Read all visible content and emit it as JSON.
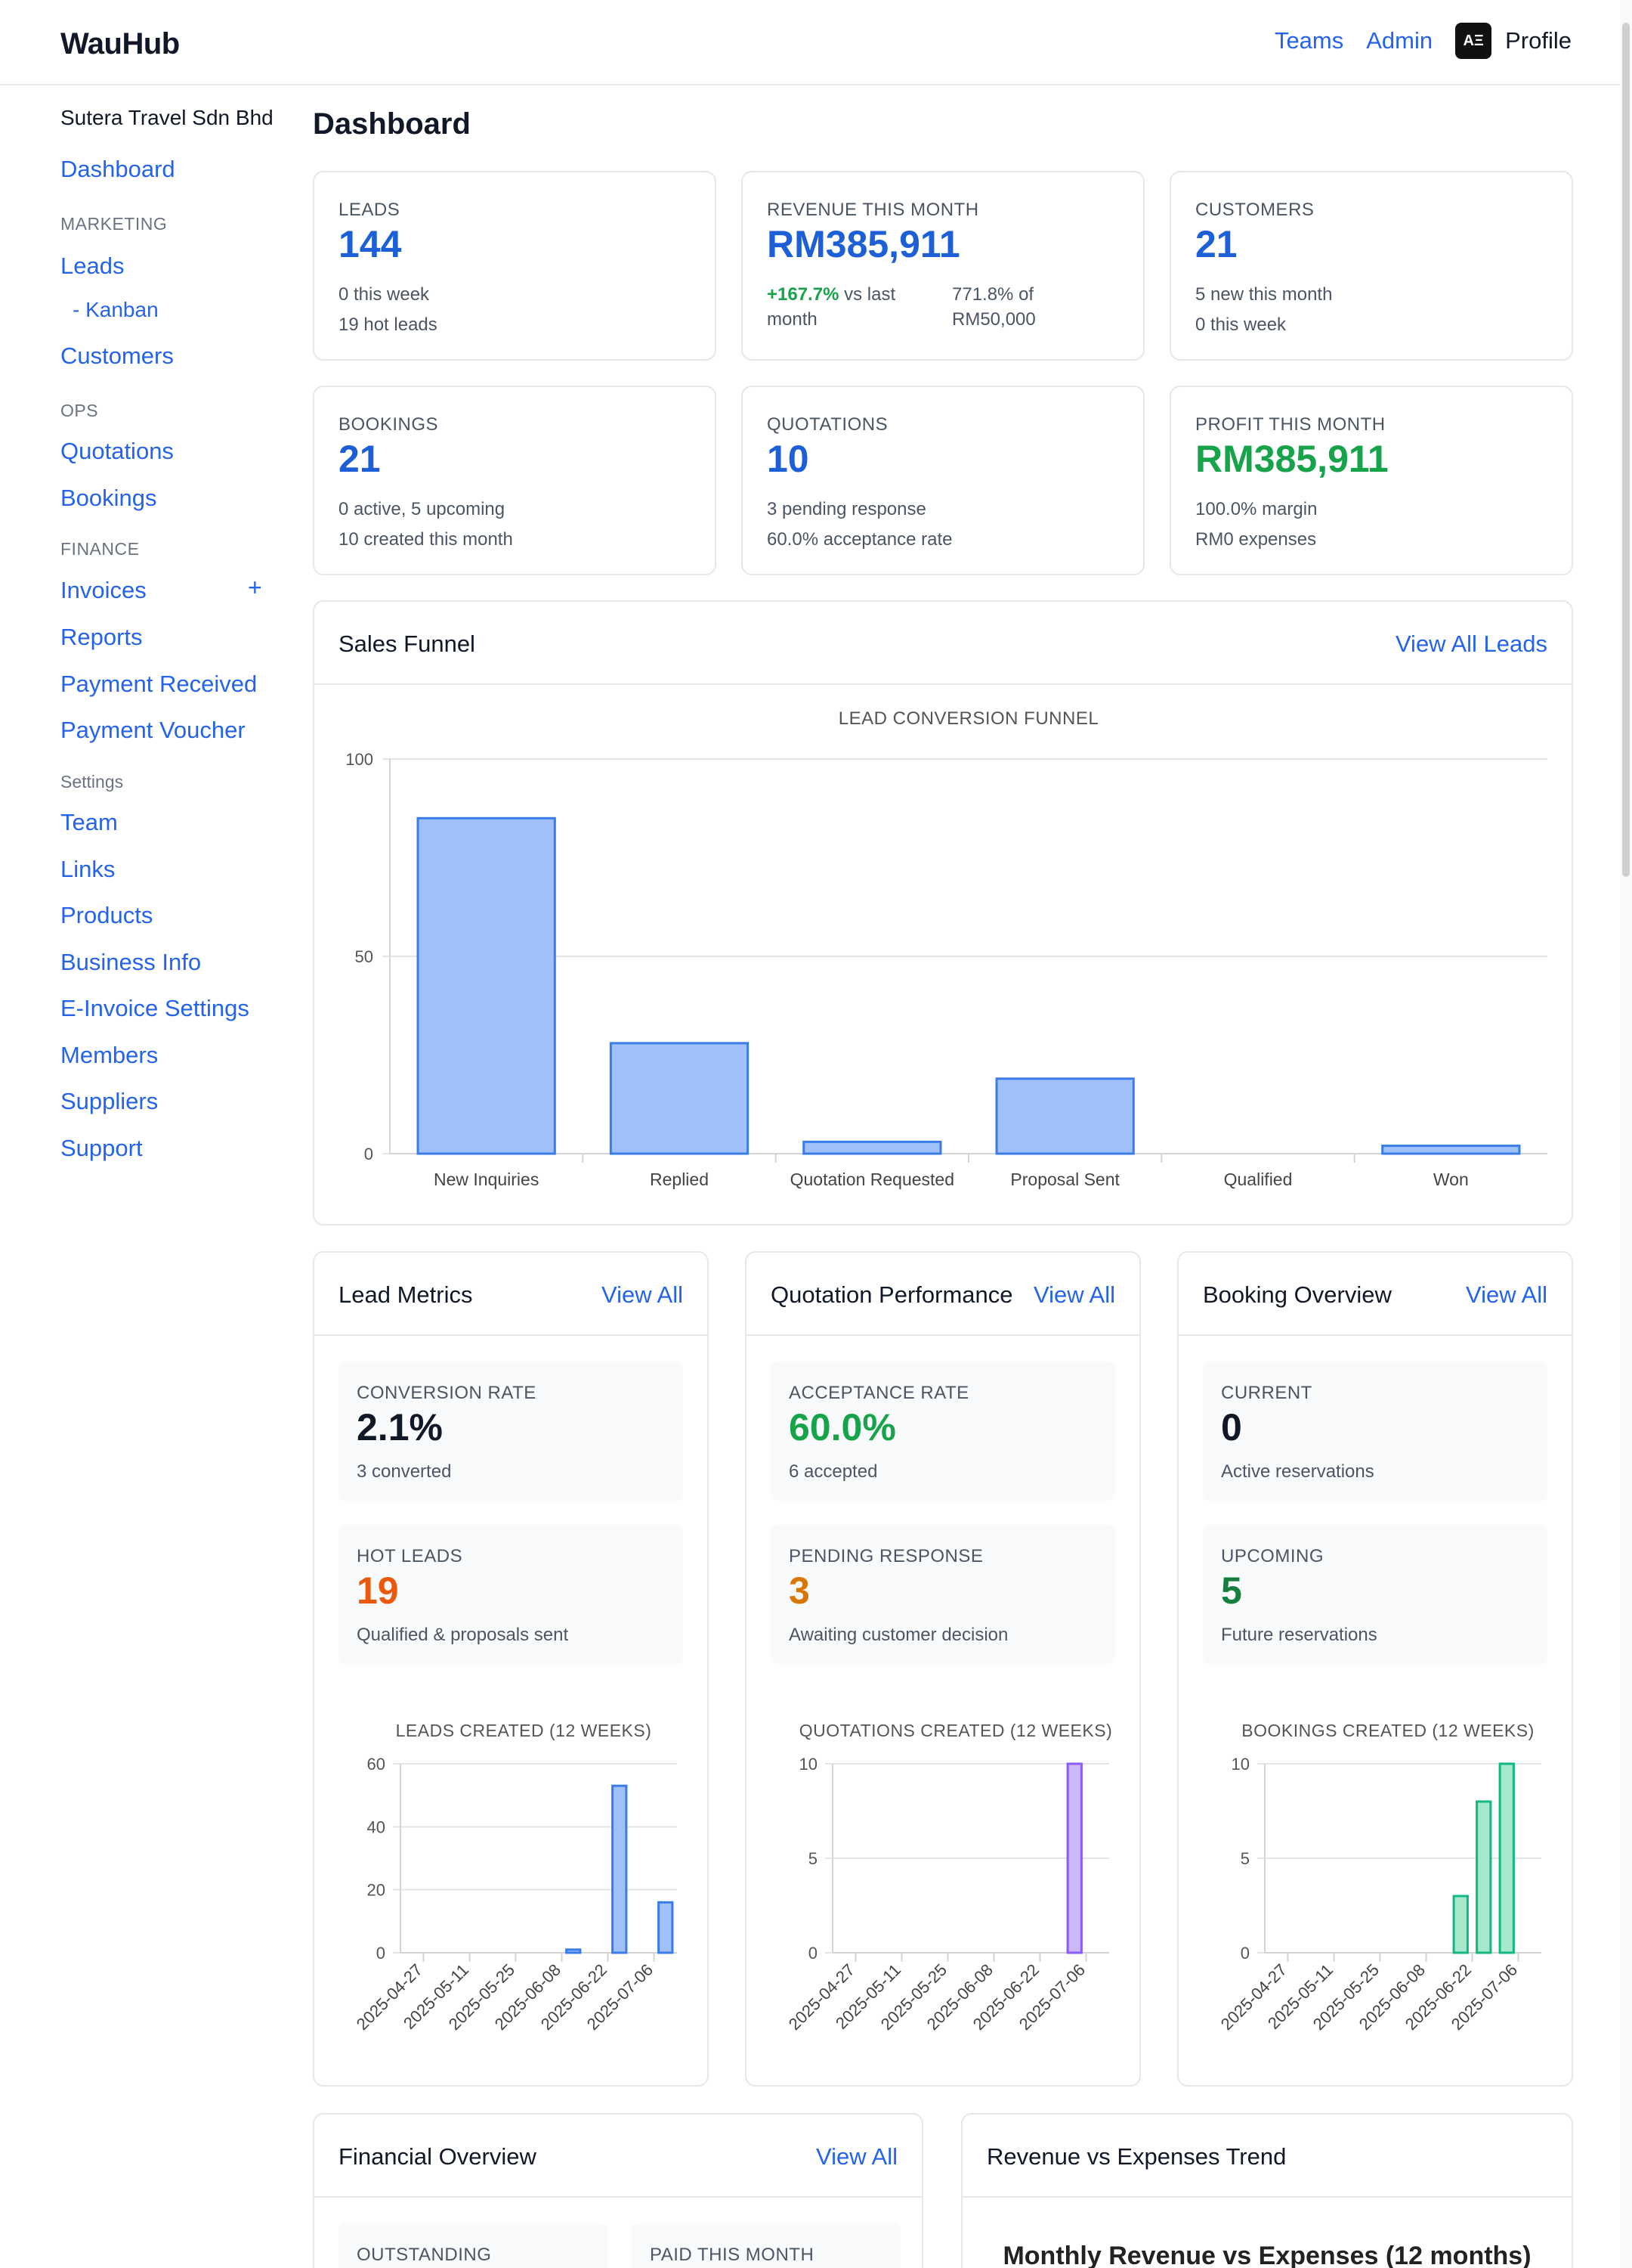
{
  "header": {
    "brand": "WauHub",
    "nav": [
      "Teams",
      "Admin"
    ],
    "profile_label": "Profile",
    "avatar_text": "AΞ"
  },
  "sidebar": {
    "company": "Sutera Travel Sdn Bhd",
    "dashboard": "Dashboard",
    "marketing_section": "MARKETING",
    "leads": "Leads",
    "kanban": "- Kanban",
    "customers": "Customers",
    "ops_section": "OPS",
    "quotations": "Quotations",
    "bookings": "Bookings",
    "finance_section": "FINANCE",
    "invoices": "Invoices",
    "invoices_add": "+",
    "reports": "Reports",
    "payment_received": "Payment Received",
    "payment_voucher": "Payment Voucher",
    "settings_section": "Settings",
    "team": "Team",
    "links": "Links",
    "products": "Products",
    "business_info": "Business Info",
    "einvoice": "E-Invoice Settings",
    "members": "Members",
    "suppliers": "Suppliers",
    "support": "Support"
  },
  "page": {
    "title": "Dashboard"
  },
  "stats": {
    "leads": {
      "label": "LEADS",
      "value": "144",
      "sub1": "0 this week",
      "sub2": "19 hot leads"
    },
    "revenue": {
      "label": "REVENUE THIS MONTH",
      "value": "RM385,911",
      "change": "+167.7%",
      "change_suffix": " vs last",
      "change_suffix2": "month",
      "target1": "771.8% of",
      "target2": "RM50,000"
    },
    "customers": {
      "label": "CUSTOMERS",
      "value": "21",
      "sub1": "5 new this month",
      "sub2": "0 this week"
    },
    "bookings": {
      "label": "BOOKINGS",
      "value": "21",
      "sub1": "0 active, 5 upcoming",
      "sub2": "10 created this month"
    },
    "quotations": {
      "label": "QUOTATIONS",
      "value": "10",
      "sub1": "3 pending response",
      "sub2": "60.0% acceptance rate"
    },
    "profit": {
      "label": "PROFIT THIS MONTH",
      "value": "RM385,911",
      "sub1": "100.0% margin",
      "sub2": "RM0 expenses"
    }
  },
  "funnel_panel": {
    "title": "Sales Funnel",
    "link": "View All Leads"
  },
  "lead_panel": {
    "title": "Lead Metrics",
    "link": "View All",
    "m1": {
      "label": "CONVERSION RATE",
      "value": "2.1%",
      "sub": "3 converted"
    },
    "m2": {
      "label": "HOT LEADS",
      "value": "19",
      "sub": "Qualified & proposals sent"
    }
  },
  "quote_panel": {
    "title": "Quotation Performance",
    "link": "View All",
    "m1": {
      "label": "ACCEPTANCE RATE",
      "value": "60.0%",
      "sub": "6 accepted"
    },
    "m2": {
      "label": "PENDING RESPONSE",
      "value": "3",
      "sub": "Awaiting customer decision"
    }
  },
  "booking_panel": {
    "title": "Booking Overview",
    "link": "View All",
    "m1": {
      "label": "CURRENT",
      "value": "0",
      "sub": "Active reservations"
    },
    "m2": {
      "label": "UPCOMING",
      "value": "5",
      "sub": "Future reservations"
    }
  },
  "financial_panel": {
    "title": "Financial Overview",
    "link": "View All",
    "m1_label": "OUTSTANDING",
    "m2_label": "PAID THIS MONTH"
  },
  "trend_panel": {
    "title": "Revenue vs Expenses Trend",
    "chart_title": "Monthly Revenue vs Expenses (12 months)"
  },
  "chart_data": [
    {
      "type": "bar",
      "title": "LEAD CONVERSION FUNNEL",
      "categories": [
        "New Inquiries",
        "Replied",
        "Quotation Requested",
        "Proposal Sent",
        "Qualified",
        "Won"
      ],
      "values": [
        85,
        28,
        3,
        19,
        0,
        2
      ],
      "ylim": [
        0,
        100
      ],
      "yticks": [
        0,
        50,
        100
      ],
      "color": "#a0c0fa",
      "stroke": "#3b7de8"
    },
    {
      "type": "bar",
      "title": "LEADS CREATED (12 WEEKS)",
      "tick_labels": [
        "2025-04-27",
        "2025-05-11",
        "2025-05-25",
        "2025-06-08",
        "2025-06-22",
        "2025-07-06"
      ],
      "values": [
        0,
        0,
        0,
        0,
        0,
        0,
        0,
        1,
        0,
        53,
        0,
        16
      ],
      "ylim": [
        0,
        60
      ],
      "yticks": [
        0,
        20,
        40,
        60
      ],
      "color": "#a0c0fa",
      "stroke": "#3b7de8"
    },
    {
      "type": "bar",
      "title": "QUOTATIONS CREATED (12 WEEKS)",
      "tick_labels": [
        "2025-04-27",
        "2025-05-11",
        "2025-05-25",
        "2025-06-08",
        "2025-06-22",
        "2025-07-06"
      ],
      "values": [
        0,
        0,
        0,
        0,
        0,
        0,
        0,
        0,
        0,
        0,
        10,
        0
      ],
      "ylim": [
        0,
        10
      ],
      "yticks": [
        0,
        5,
        10
      ],
      "color": "#cdb8f7",
      "stroke": "#8b5cf6"
    },
    {
      "type": "bar",
      "title": "BOOKINGS CREATED (12 WEEKS)",
      "tick_labels": [
        "2025-04-27",
        "2025-05-11",
        "2025-05-25",
        "2025-06-08",
        "2025-06-22",
        "2025-07-06"
      ],
      "values": [
        0,
        0,
        0,
        0,
        0,
        0,
        0,
        0,
        3,
        8,
        10,
        0
      ],
      "ylim": [
        0,
        10
      ],
      "yticks": [
        0,
        5,
        10
      ],
      "color": "#a6e8cc",
      "stroke": "#10b981"
    }
  ]
}
